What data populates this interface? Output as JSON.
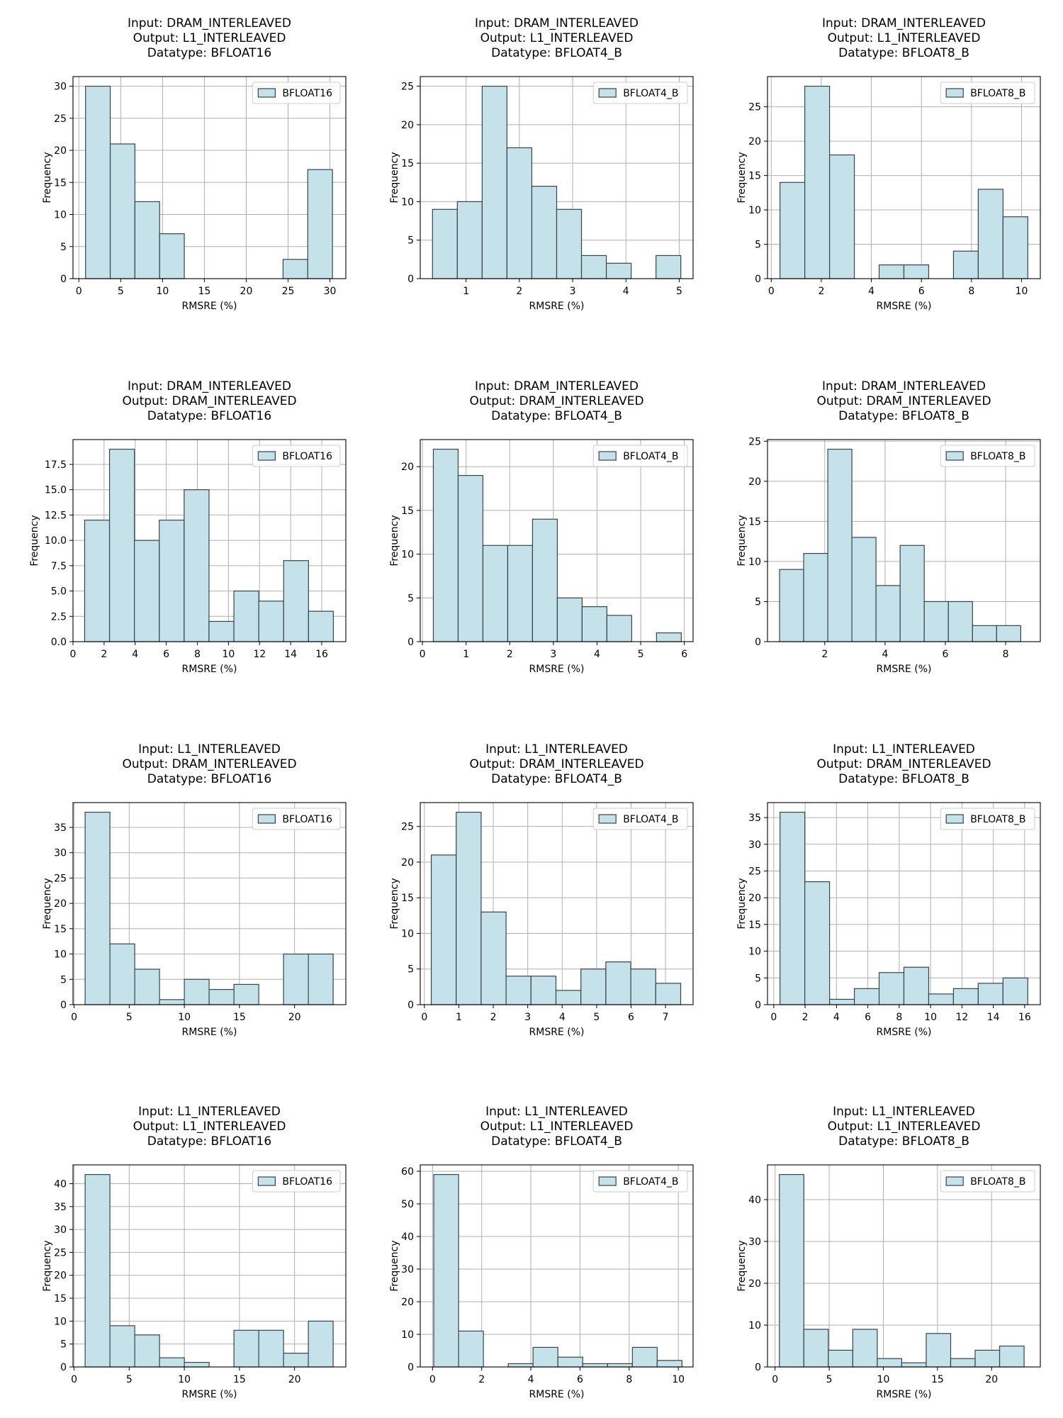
{
  "colors": {
    "bar_fill": "#c5e2ea",
    "bar_edge": "#35454a",
    "grid": "#b0b0b0",
    "axis": "#000000"
  },
  "chart_data": [
    {
      "type": "bar",
      "title": [
        "Input: DRAM_INTERLEAVED",
        "Output: L1_INTERLEAVED",
        "Datatype: BFLOAT16"
      ],
      "xlabel": "RMSRE (%)",
      "ylabel": "Frequency",
      "legend": "BFLOAT16",
      "legend_position": "top-right",
      "grid": true,
      "xlim": [
        -0.7,
        31.9
      ],
      "ylim": [
        0,
        31.5
      ],
      "xticks": [
        0,
        5,
        10,
        15,
        20,
        25,
        30
      ],
      "yticks": [
        0,
        5,
        10,
        15,
        20,
        25,
        30
      ],
      "bin_edges": [
        0.8,
        3.75,
        6.7,
        9.65,
        12.6,
        15.55,
        18.5,
        21.45,
        24.4,
        27.35,
        30.3
      ],
      "counts": [
        30,
        21,
        12,
        7,
        0,
        0,
        0,
        0,
        3,
        17
      ]
    },
    {
      "type": "bar",
      "title": [
        "Input: DRAM_INTERLEAVED",
        "Output: L1_INTERLEAVED",
        "Datatype: BFLOAT4_B"
      ],
      "xlabel": "RMSRE (%)",
      "ylabel": "Frequency",
      "legend": "BFLOAT4_B",
      "legend_position": "top-right",
      "grid": true,
      "xlim": [
        0.14,
        5.26
      ],
      "ylim": [
        0,
        26.25
      ],
      "xticks": [
        1,
        2,
        3,
        4,
        5
      ],
      "yticks": [
        0,
        5,
        10,
        15,
        20,
        25
      ],
      "bin_edges": [
        0.37,
        0.836,
        1.302,
        1.768,
        2.234,
        2.7,
        3.166,
        3.632,
        4.098,
        4.564,
        5.03
      ],
      "counts": [
        9,
        10,
        25,
        17,
        12,
        9,
        3,
        2,
        0,
        3
      ]
    },
    {
      "type": "bar",
      "title": [
        "Input: DRAM_INTERLEAVED",
        "Output: L1_INTERLEAVED",
        "Datatype: BFLOAT8_B"
      ],
      "xlabel": "RMSRE (%)",
      "ylabel": "Frequency",
      "legend": "BFLOAT8_B",
      "legend_position": "top-right",
      "grid": true,
      "xlim": [
        -0.15,
        10.75
      ],
      "ylim": [
        0,
        29.4
      ],
      "xticks": [
        0,
        2,
        4,
        6,
        8,
        10
      ],
      "yticks": [
        0,
        5,
        10,
        15,
        20,
        25
      ],
      "bin_edges": [
        0.35,
        1.34,
        2.33,
        3.32,
        4.31,
        5.3,
        6.29,
        7.28,
        8.27,
        9.26,
        10.25
      ],
      "counts": [
        14,
        28,
        18,
        0,
        2,
        2,
        0,
        4,
        13,
        9
      ]
    },
    {
      "type": "bar",
      "title": [
        "Input: DRAM_INTERLEAVED",
        "Output: DRAM_INTERLEAVED",
        "Datatype: BFLOAT16"
      ],
      "xlabel": "RMSRE (%)",
      "ylabel": "Frequency",
      "legend": "BFLOAT16",
      "legend_position": "top-right",
      "grid": true,
      "xlim": [
        0,
        17.55
      ],
      "ylim": [
        0,
        19.95
      ],
      "xticks": [
        0,
        2,
        4,
        6,
        8,
        10,
        12,
        14,
        16
      ],
      "yticks": [
        0,
        2.5,
        5,
        7.5,
        10,
        12.5,
        15,
        17.5
      ],
      "ytick_labels": [
        "0.0",
        "2.5",
        "5.0",
        "7.5",
        "10.0",
        "12.5",
        "15.0",
        "17.5"
      ],
      "bin_edges": [
        0.75,
        2.35,
        3.95,
        5.55,
        7.15,
        8.75,
        10.35,
        11.95,
        13.55,
        15.15,
        16.75
      ],
      "counts": [
        12,
        19,
        10,
        12,
        15,
        2,
        5,
        4,
        8,
        3
      ]
    },
    {
      "type": "bar",
      "title": [
        "Input: DRAM_INTERLEAVED",
        "Output: DRAM_INTERLEAVED",
        "Datatype: BFLOAT4_B"
      ],
      "xlabel": "RMSRE (%)",
      "ylabel": "Frequency",
      "legend": "BFLOAT4_B",
      "legend_position": "top-right",
      "grid": true,
      "xlim": [
        -0.05,
        6.2
      ],
      "ylim": [
        0,
        23.1
      ],
      "xticks": [
        0,
        1,
        2,
        3,
        4,
        5,
        6
      ],
      "yticks": [
        0,
        5,
        10,
        15,
        20
      ],
      "bin_edges": [
        0.25,
        0.818,
        1.386,
        1.954,
        2.522,
        3.09,
        3.658,
        4.226,
        4.794,
        5.362,
        5.93
      ],
      "counts": [
        22,
        19,
        11,
        11,
        14,
        5,
        4,
        3,
        0,
        1
      ]
    },
    {
      "type": "bar",
      "title": [
        "Input: DRAM_INTERLEAVED",
        "Output: DRAM_INTERLEAVED",
        "Datatype: BFLOAT8_B"
      ],
      "xlabel": "RMSRE (%)",
      "ylabel": "Frequency",
      "legend": "BFLOAT8_B",
      "legend_position": "top-right",
      "grid": true,
      "xlim": [
        0.1,
        9.15
      ],
      "ylim": [
        0,
        25.2
      ],
      "xticks": [
        2,
        4,
        6,
        8
      ],
      "yticks": [
        0,
        5,
        10,
        15,
        20,
        25
      ],
      "bin_edges": [
        0.5,
        1.3,
        2.1,
        2.9,
        3.7,
        4.5,
        5.3,
        6.1,
        6.9,
        7.7,
        8.5
      ],
      "counts": [
        9,
        11,
        24,
        13,
        7,
        12,
        5,
        5,
        2,
        2
      ]
    },
    {
      "type": "bar",
      "title": [
        "Input: L1_INTERLEAVED",
        "Output: DRAM_INTERLEAVED",
        "Datatype: BFLOAT16"
      ],
      "xlabel": "RMSRE (%)",
      "ylabel": "Frequency",
      "legend": "BFLOAT16",
      "legend_position": "top-right",
      "grid": true,
      "xlim": [
        -0.1,
        24.65
      ],
      "ylim": [
        0,
        39.9
      ],
      "xticks": [
        0,
        5,
        10,
        15,
        20
      ],
      "yticks": [
        0,
        5,
        10,
        15,
        20,
        25,
        30,
        35
      ],
      "bin_edges": [
        1,
        3.25,
        5.5,
        7.75,
        10,
        12.25,
        14.5,
        16.75,
        19,
        21.25,
        23.5
      ],
      "counts": [
        38,
        12,
        7,
        1,
        5,
        3,
        4,
        0,
        10,
        10
      ]
    },
    {
      "type": "bar",
      "title": [
        "Input: L1_INTERLEAVED",
        "Output: DRAM_INTERLEAVED",
        "Datatype: BFLOAT4_B"
      ],
      "xlabel": "RMSRE (%)",
      "ylabel": "Frequency",
      "legend": "BFLOAT4_B",
      "legend_position": "top-right",
      "grid": true,
      "xlim": [
        -0.12,
        7.8
      ],
      "ylim": [
        0,
        28.35
      ],
      "xticks": [
        0,
        1,
        2,
        3,
        4,
        5,
        6,
        7
      ],
      "yticks": [
        0,
        5,
        10,
        15,
        20,
        25
      ],
      "bin_edges": [
        0.2,
        0.924,
        1.648,
        2.372,
        3.096,
        3.82,
        4.544,
        5.268,
        5.992,
        6.716,
        7.44
      ],
      "counts": [
        21,
        27,
        13,
        4,
        4,
        2,
        5,
        6,
        5,
        3
      ]
    },
    {
      "type": "bar",
      "title": [
        "Input: L1_INTERLEAVED",
        "Output: DRAM_INTERLEAVED",
        "Datatype: BFLOAT8_B"
      ],
      "xlabel": "RMSRE (%)",
      "ylabel": "Frequency",
      "legend": "BFLOAT8_B",
      "legend_position": "top-right",
      "grid": true,
      "xlim": [
        -0.4,
        17
      ],
      "ylim": [
        0,
        37.8
      ],
      "xticks": [
        0,
        2,
        4,
        6,
        8,
        10,
        12,
        14,
        16
      ],
      "yticks": [
        0,
        5,
        10,
        15,
        20,
        25,
        30,
        35
      ],
      "bin_edges": [
        0.4,
        1.98,
        3.56,
        5.14,
        6.72,
        8.3,
        9.88,
        11.46,
        13.04,
        14.62,
        16.2
      ],
      "counts": [
        36,
        23,
        1,
        3,
        6,
        7,
        2,
        3,
        4,
        5
      ]
    },
    {
      "type": "bar",
      "title": [
        "Input: L1_INTERLEAVED",
        "Output: L1_INTERLEAVED",
        "Datatype: BFLOAT16"
      ],
      "xlabel": "RMSRE (%)",
      "ylabel": "Frequency",
      "legend": "BFLOAT16",
      "legend_position": "top-right",
      "grid": true,
      "xlim": [
        -0.1,
        24.65
      ],
      "ylim": [
        0,
        44.1
      ],
      "xticks": [
        0,
        5,
        10,
        15,
        20
      ],
      "yticks": [
        0,
        5,
        10,
        15,
        20,
        25,
        30,
        35,
        40
      ],
      "bin_edges": [
        1,
        3.25,
        5.5,
        7.75,
        10,
        12.25,
        14.5,
        16.75,
        19,
        21.25,
        23.5
      ],
      "counts": [
        42,
        9,
        7,
        2,
        1,
        0,
        8,
        8,
        3,
        10
      ]
    },
    {
      "type": "bar",
      "title": [
        "Input: L1_INTERLEAVED",
        "Output: L1_INTERLEAVED",
        "Datatype: BFLOAT4_B"
      ],
      "xlabel": "RMSRE (%)",
      "ylabel": "Frequency",
      "legend": "BFLOAT4_B",
      "legend_position": "top-right",
      "grid": true,
      "xlim": [
        -0.5,
        10.6
      ],
      "ylim": [
        0,
        61.95
      ],
      "xticks": [
        0,
        2,
        4,
        6,
        8,
        10
      ],
      "yticks": [
        0,
        10,
        20,
        30,
        40,
        50,
        60
      ],
      "bin_edges": [
        0.05,
        1.06,
        2.07,
        3.08,
        4.09,
        5.1,
        6.11,
        7.12,
        8.13,
        9.14,
        10.15
      ],
      "counts": [
        59,
        11,
        0,
        1,
        6,
        3,
        1,
        1,
        6,
        2
      ]
    },
    {
      "type": "bar",
      "title": [
        "Input: L1_INTERLEAVED",
        "Output: L1_INTERLEAVED",
        "Datatype: BFLOAT8_B"
      ],
      "xlabel": "RMSRE (%)",
      "ylabel": "Frequency",
      "legend": "BFLOAT8_B",
      "legend_position": "top-right",
      "grid": true,
      "xlim": [
        -0.7,
        24.5
      ],
      "ylim": [
        0,
        48.3
      ],
      "xticks": [
        0,
        5,
        10,
        15,
        20
      ],
      "yticks": [
        0,
        10,
        20,
        30,
        40
      ],
      "bin_edges": [
        0.4,
        2.66,
        4.92,
        7.18,
        9.44,
        11.7,
        13.96,
        16.22,
        18.48,
        20.74,
        23
      ],
      "counts": [
        46,
        9,
        4,
        9,
        2,
        1,
        8,
        2,
        4,
        5
      ]
    }
  ]
}
